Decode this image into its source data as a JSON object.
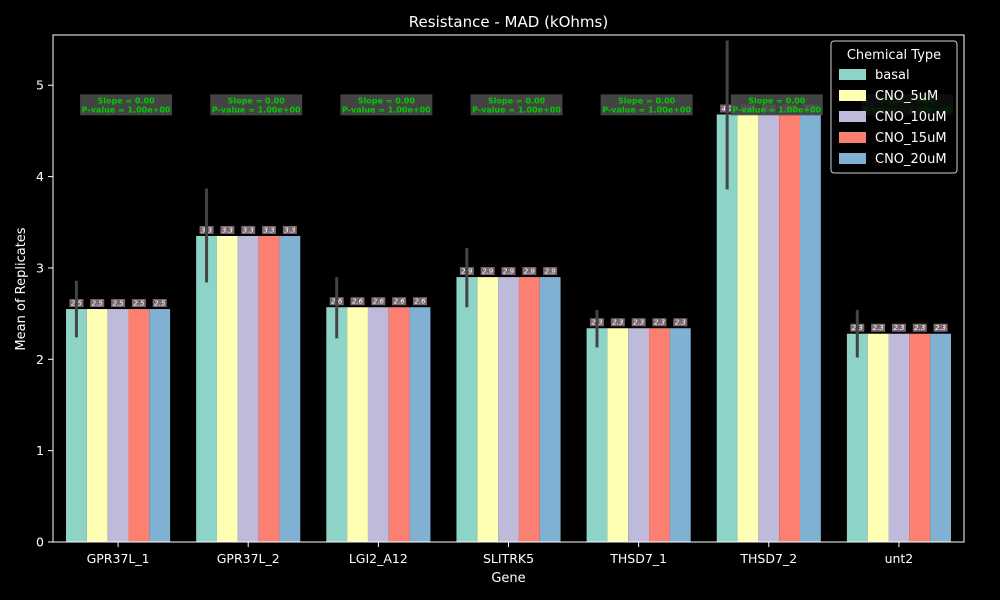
{
  "chart_data": {
    "type": "bar",
    "title": "Resistance - MAD (kOhms)",
    "xlabel": "Gene",
    "ylabel": "Mean of Replicates",
    "ylim": [
      0,
      5.55
    ],
    "yticks": [
      0,
      1,
      2,
      3,
      4,
      5
    ],
    "grid": false,
    "legend_title": "Chemical Type",
    "legend_placement": "top-right",
    "categories": [
      "GPR37L_1",
      "GPR37L_2",
      "LGI2_A12",
      "SLITRK5",
      "THSD7_1",
      "THSD7_2",
      "unt2"
    ],
    "series": [
      {
        "name": "basal",
        "color": "#8dd3c7",
        "values": [
          2.55,
          3.35,
          2.57,
          2.9,
          2.34,
          4.68,
          2.28
        ]
      },
      {
        "name": "CNO_5uM",
        "color": "#ffffb3",
        "values": [
          2.55,
          3.35,
          2.57,
          2.9,
          2.34,
          4.68,
          2.28
        ]
      },
      {
        "name": "CNO_10uM",
        "color": "#bebada",
        "values": [
          2.55,
          3.35,
          2.57,
          2.9,
          2.34,
          4.68,
          2.28
        ]
      },
      {
        "name": "CNO_15uM",
        "color": "#fb8072",
        "values": [
          2.55,
          3.35,
          2.57,
          2.9,
          2.34,
          4.68,
          2.28
        ]
      },
      {
        "name": "CNO_20uM",
        "color": "#80b1d3",
        "values": [
          2.55,
          3.35,
          2.57,
          2.9,
          2.34,
          4.68,
          2.28
        ]
      }
    ],
    "bar_labels": [
      "2.5",
      "3.3",
      "2.6",
      "2.9",
      "2.3",
      "4.7",
      "2.3"
    ],
    "error_bars": [
      [
        2.24,
        2.86
      ],
      [
        2.84,
        3.87
      ],
      [
        2.23,
        2.9
      ],
      [
        2.57,
        3.22
      ],
      [
        2.13,
        2.54
      ],
      [
        3.86,
        5.49
      ],
      [
        2.02,
        2.54
      ]
    ],
    "annotations": [
      {
        "text": [
          "Slope = 0.00",
          "P-value = 1.00e+00"
        ],
        "y": 4.78
      },
      {
        "text": [
          "Slope = 0.00",
          "P-value = 1.00e+00"
        ],
        "y": 4.78
      },
      {
        "text": [
          "Slope = 0.00",
          "P-value = 1.00e+00"
        ],
        "y": 4.78
      },
      {
        "text": [
          "Slope = 0.00",
          "P-value = 1.00e+00"
        ],
        "y": 4.78
      },
      {
        "text": [
          "Slope = 0.00",
          "P-value = 1.00e+00"
        ],
        "y": 4.78
      },
      {
        "text": [
          "Slope = 0.00",
          "P-value = 1.00e+00"
        ],
        "y": 4.78
      },
      {
        "text": [
          "Slope = 0.00",
          "P-value = 1.00e+00"
        ],
        "y": 4.78
      }
    ]
  }
}
